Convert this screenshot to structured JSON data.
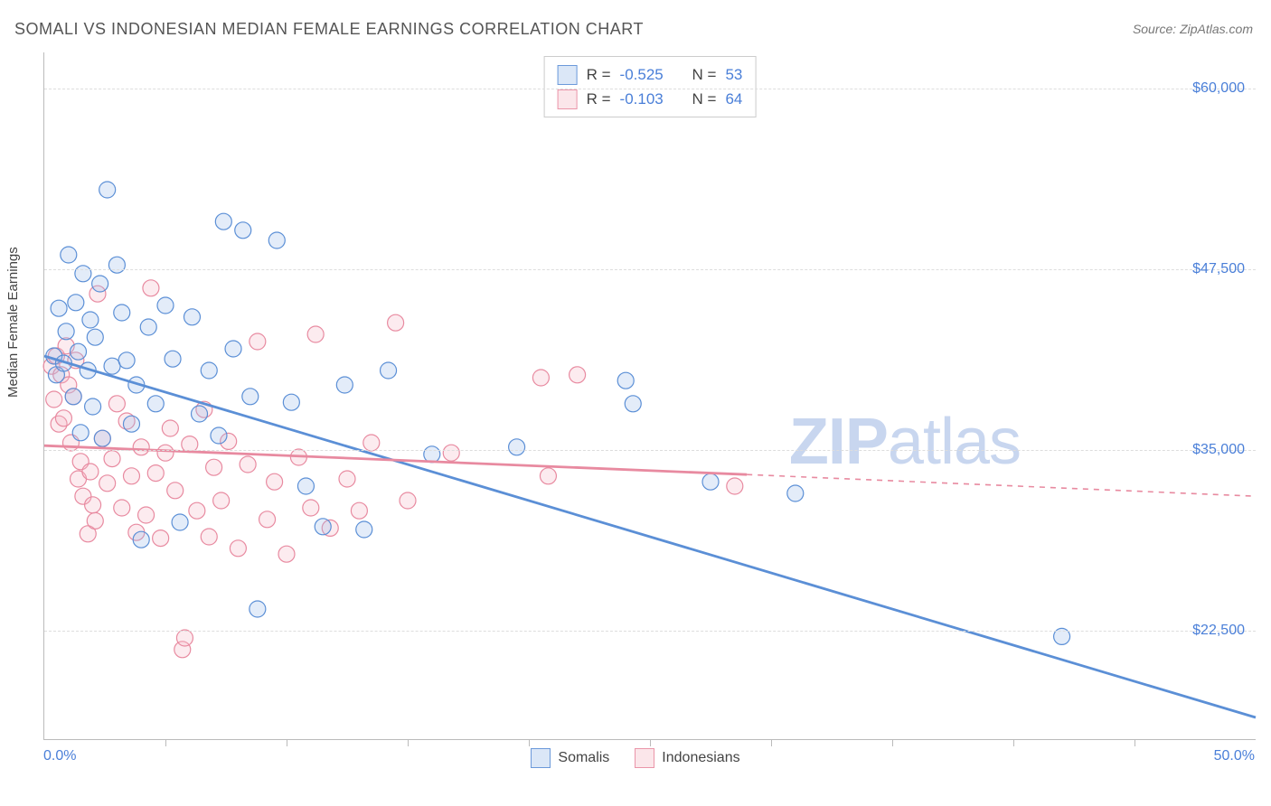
{
  "title": "SOMALI VS INDONESIAN MEDIAN FEMALE EARNINGS CORRELATION CHART",
  "source": "Source: ZipAtlas.com",
  "watermark_zip": "ZIP",
  "watermark_atlas": "atlas",
  "y_axis_title": "Median Female Earnings",
  "chart": {
    "type": "scatter",
    "x_min": 0.0,
    "x_max": 50.0,
    "x_unit": "%",
    "x_label_min": "0.0%",
    "x_label_max": "50.0%",
    "x_tick_positions": [
      5,
      10,
      15,
      20,
      25,
      30,
      35,
      40,
      45
    ],
    "y_min": 15000,
    "y_max": 62500,
    "y_ticks": [
      22500,
      35000,
      47500,
      60000
    ],
    "y_tick_labels": [
      "$22,500",
      "$35,000",
      "$47,500",
      "$60,000"
    ],
    "grid_color": "#dddddd",
    "axis_color": "#bbbbbb",
    "background_color": "#ffffff",
    "label_color": "#4a7fd8",
    "marker_radius": 9,
    "marker_stroke_width": 1.2,
    "marker_fill_opacity": 0.28,
    "series": [
      {
        "key": "somalis",
        "label": "Somalis",
        "color_stroke": "#5b8fd6",
        "color_fill": "#9bbce8",
        "R_label": "R =",
        "R": "-0.525",
        "N_label": "N =",
        "N": "53",
        "trend": {
          "x1": 0,
          "y1": 41500,
          "x2_solid": 50,
          "y2_solid": 16500
        },
        "points": [
          [
            0.4,
            41500
          ],
          [
            0.5,
            40200
          ],
          [
            0.6,
            44800
          ],
          [
            0.8,
            41000
          ],
          [
            0.9,
            43200
          ],
          [
            1.0,
            48500
          ],
          [
            1.2,
            38700
          ],
          [
            1.3,
            45200
          ],
          [
            1.4,
            41800
          ],
          [
            1.5,
            36200
          ],
          [
            1.6,
            47200
          ],
          [
            1.8,
            40500
          ],
          [
            1.9,
            44000
          ],
          [
            2.0,
            38000
          ],
          [
            2.1,
            42800
          ],
          [
            2.3,
            46500
          ],
          [
            2.4,
            35800
          ],
          [
            2.6,
            53000
          ],
          [
            2.8,
            40800
          ],
          [
            3.0,
            47800
          ],
          [
            3.2,
            44500
          ],
          [
            3.4,
            41200
          ],
          [
            3.6,
            36800
          ],
          [
            3.8,
            39500
          ],
          [
            4.0,
            28800
          ],
          [
            4.3,
            43500
          ],
          [
            4.6,
            38200
          ],
          [
            5.0,
            45000
          ],
          [
            5.3,
            41300
          ],
          [
            5.6,
            30000
          ],
          [
            6.1,
            44200
          ],
          [
            6.4,
            37500
          ],
          [
            6.8,
            40500
          ],
          [
            7.2,
            36000
          ],
          [
            7.4,
            50800
          ],
          [
            7.8,
            42000
          ],
          [
            8.2,
            50200
          ],
          [
            8.5,
            38700
          ],
          [
            8.8,
            24000
          ],
          [
            9.6,
            49500
          ],
          [
            10.2,
            38300
          ],
          [
            10.8,
            32500
          ],
          [
            11.5,
            29700
          ],
          [
            12.4,
            39500
          ],
          [
            13.2,
            29500
          ],
          [
            14.2,
            40500
          ],
          [
            16.0,
            34700
          ],
          [
            19.5,
            35200
          ],
          [
            24.0,
            39800
          ],
          [
            24.3,
            38200
          ],
          [
            27.5,
            32800
          ],
          [
            31.0,
            32000
          ],
          [
            42.0,
            22100
          ]
        ]
      },
      {
        "key": "indonesians",
        "label": "Indonesians",
        "color_stroke": "#e88aa0",
        "color_fill": "#f4b8c6",
        "R_label": "R =",
        "R": "-0.103",
        "N_label": "N =",
        "N": "64",
        "trend": {
          "x1": 0,
          "y1": 35300,
          "x2_solid": 29,
          "y2_solid": 33300,
          "x2_dash": 50,
          "y2_dash": 31800
        },
        "points": [
          [
            0.3,
            40800
          ],
          [
            0.4,
            38500
          ],
          [
            0.5,
            41500
          ],
          [
            0.6,
            36800
          ],
          [
            0.7,
            40200
          ],
          [
            0.8,
            37200
          ],
          [
            0.9,
            42200
          ],
          [
            1.0,
            39500
          ],
          [
            1.1,
            35500
          ],
          [
            1.2,
            38700
          ],
          [
            1.3,
            41200
          ],
          [
            1.4,
            33000
          ],
          [
            1.5,
            34200
          ],
          [
            1.6,
            31800
          ],
          [
            1.8,
            29200
          ],
          [
            1.9,
            33500
          ],
          [
            2.0,
            31200
          ],
          [
            2.1,
            30100
          ],
          [
            2.2,
            45800
          ],
          [
            2.4,
            35800
          ],
          [
            2.6,
            32700
          ],
          [
            2.8,
            34400
          ],
          [
            3.0,
            38200
          ],
          [
            3.2,
            31000
          ],
          [
            3.4,
            37000
          ],
          [
            3.6,
            33200
          ],
          [
            3.8,
            29300
          ],
          [
            4.0,
            35200
          ],
          [
            4.2,
            30500
          ],
          [
            4.4,
            46200
          ],
          [
            4.6,
            33400
          ],
          [
            4.8,
            28900
          ],
          [
            5.0,
            34800
          ],
          [
            5.2,
            36500
          ],
          [
            5.4,
            32200
          ],
          [
            5.7,
            21200
          ],
          [
            5.8,
            22000
          ],
          [
            6.0,
            35400
          ],
          [
            6.3,
            30800
          ],
          [
            6.6,
            37800
          ],
          [
            6.8,
            29000
          ],
          [
            7.0,
            33800
          ],
          [
            7.3,
            31500
          ],
          [
            7.6,
            35600
          ],
          [
            8.0,
            28200
          ],
          [
            8.4,
            34000
          ],
          [
            8.8,
            42500
          ],
          [
            9.2,
            30200
          ],
          [
            9.5,
            32800
          ],
          [
            10.0,
            27800
          ],
          [
            10.5,
            34500
          ],
          [
            11.0,
            31000
          ],
          [
            11.2,
            43000
          ],
          [
            11.8,
            29600
          ],
          [
            12.5,
            33000
          ],
          [
            13.0,
            30800
          ],
          [
            13.5,
            35500
          ],
          [
            14.5,
            43800
          ],
          [
            15.0,
            31500
          ],
          [
            16.8,
            34800
          ],
          [
            20.5,
            40000
          ],
          [
            22.0,
            40200
          ],
          [
            20.8,
            33200
          ],
          [
            28.5,
            32500
          ]
        ]
      }
    ]
  }
}
